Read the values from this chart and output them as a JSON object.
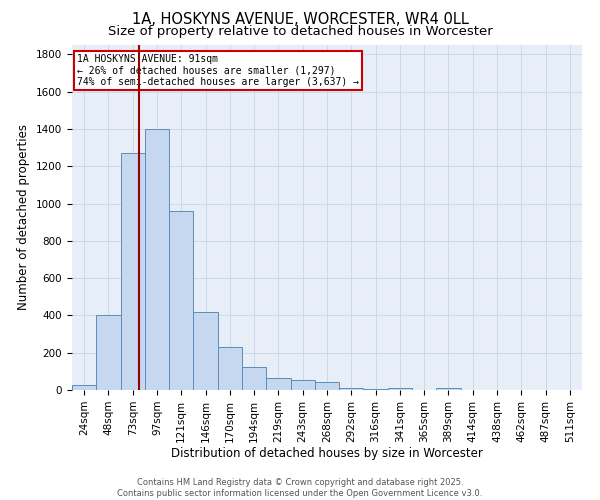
{
  "title": "1A, HOSKYNS AVENUE, WORCESTER, WR4 0LL",
  "subtitle": "Size of property relative to detached houses in Worcester",
  "xlabel": "Distribution of detached houses by size in Worcester",
  "ylabel": "Number of detached properties",
  "footer_line1": "Contains HM Land Registry data © Crown copyright and database right 2025.",
  "footer_line2": "Contains public sector information licensed under the Open Government Licence v3.0.",
  "bin_labels": [
    "24sqm",
    "48sqm",
    "73sqm",
    "97sqm",
    "121sqm",
    "146sqm",
    "170sqm",
    "194sqm",
    "219sqm",
    "243sqm",
    "268sqm",
    "292sqm",
    "316sqm",
    "341sqm",
    "365sqm",
    "389sqm",
    "414sqm",
    "438sqm",
    "462sqm",
    "487sqm",
    "511sqm"
  ],
  "bar_values": [
    25,
    400,
    1270,
    1400,
    960,
    420,
    230,
    125,
    65,
    55,
    45,
    10,
    5,
    10,
    2,
    12,
    2,
    2,
    2,
    2,
    2
  ],
  "bar_color": "#c5d8ef",
  "bar_edge_color": "#5b8db8",
  "grid_color": "#c8d4e8",
  "background_color": "#e8eef8",
  "vline_x": 3,
  "vline_color": "#990000",
  "annotation_text": "1A HOSKYNS AVENUE: 91sqm\n← 26% of detached houses are smaller (1,297)\n74% of semi-detached houses are larger (3,637) →",
  "annotation_box_color": "#ffffff",
  "annotation_box_edge_color": "#cc0000",
  "ylim": [
    0,
    1850
  ],
  "yticks": [
    0,
    200,
    400,
    600,
    800,
    1000,
    1200,
    1400,
    1600,
    1800
  ],
  "title_fontsize": 10.5,
  "subtitle_fontsize": 9.5,
  "axis_label_fontsize": 8.5,
  "tick_fontsize": 7.5,
  "annotation_fontsize": 7,
  "footer_fontsize": 6
}
